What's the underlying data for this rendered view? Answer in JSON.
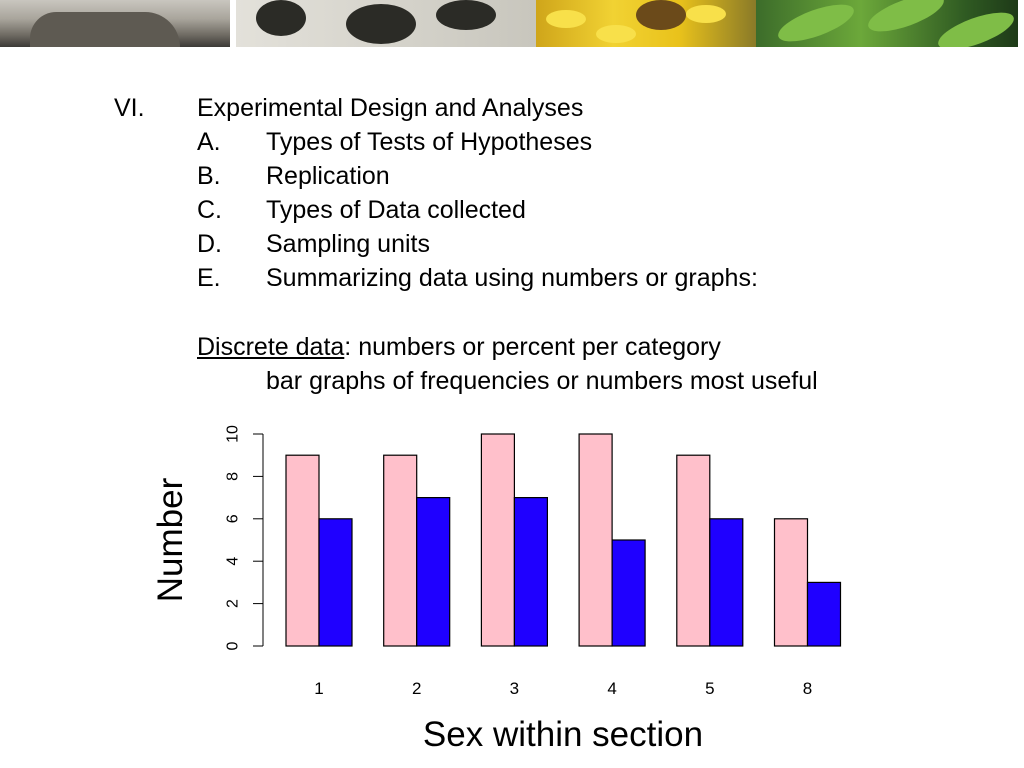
{
  "header": {
    "images": [
      "alligator-photo",
      "ant-photo",
      "yellow-flower-bee-photo",
      "green-leaves-photo"
    ]
  },
  "outline": {
    "section_number": "VI.",
    "section_title": "Experimental Design and Analyses",
    "items": [
      {
        "letter": "A.",
        "text": "Types of Tests of Hypotheses"
      },
      {
        "letter": "B.",
        "text": "Replication"
      },
      {
        "letter": "C.",
        "text": "Types of Data collected"
      },
      {
        "letter": "D.",
        "text": "Sampling units"
      },
      {
        "letter": "E.",
        "text": "Summarizing data using numbers or graphs:"
      }
    ],
    "discrete_term": "Discrete data",
    "discrete_rest": ": numbers or percent per category",
    "discrete_subline": "bar graphs of frequencies or numbers most useful"
  },
  "chart_data": {
    "type": "bar",
    "categories": [
      "1",
      "2",
      "3",
      "4",
      "5",
      "8"
    ],
    "series": [
      {
        "values": [
          9,
          9,
          10,
          10,
          9,
          6
        ],
        "color": "#ffc0cb"
      },
      {
        "values": [
          6,
          7,
          7,
          5,
          6,
          3
        ],
        "color": "#1f00ff"
      }
    ],
    "xlabel": "Sex within section",
    "ylabel": "Number",
    "ylim": [
      0,
      10
    ],
    "yticks": [
      "0",
      "2",
      "4",
      "6",
      "8",
      "10"
    ],
    "grid": false,
    "legend": "none"
  }
}
